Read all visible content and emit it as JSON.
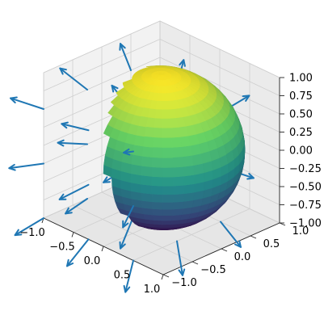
{
  "chart_data": {
    "type": "3d-surface-quiver",
    "title": "",
    "xlabel": "",
    "ylabel": "",
    "zlabel": "",
    "surface": {
      "shape": "sphere",
      "center": [
        0,
        0,
        0
      ],
      "radius": 1,
      "colormap": "viridis",
      "color_by": "z",
      "colormap_stops": [
        "#440154",
        "#3b528b",
        "#21918c",
        "#5ec962",
        "#fde725"
      ]
    },
    "vector_field": {
      "field": "radial",
      "grid_values": [
        -1.0,
        -0.25,
        0.5
      ],
      "color": "#1f77b4"
    },
    "xlim": [
      -1.0,
      1.0
    ],
    "ylim": [
      -1.0,
      1.0
    ],
    "zlim": [
      -1.0,
      1.0
    ],
    "x_ticks": [
      "−1.0",
      "−0.5",
      "0.0",
      "0.5",
      "1.0"
    ],
    "y_ticks": [
      "−1.0",
      "−0.5",
      "0.0",
      "0.5",
      "1.0"
    ],
    "z_ticks": [
      "−1.00",
      "−0.75",
      "−0.50",
      "−0.25",
      "0.00",
      "0.25",
      "0.50",
      "0.75",
      "1.00"
    ],
    "grid": true
  }
}
